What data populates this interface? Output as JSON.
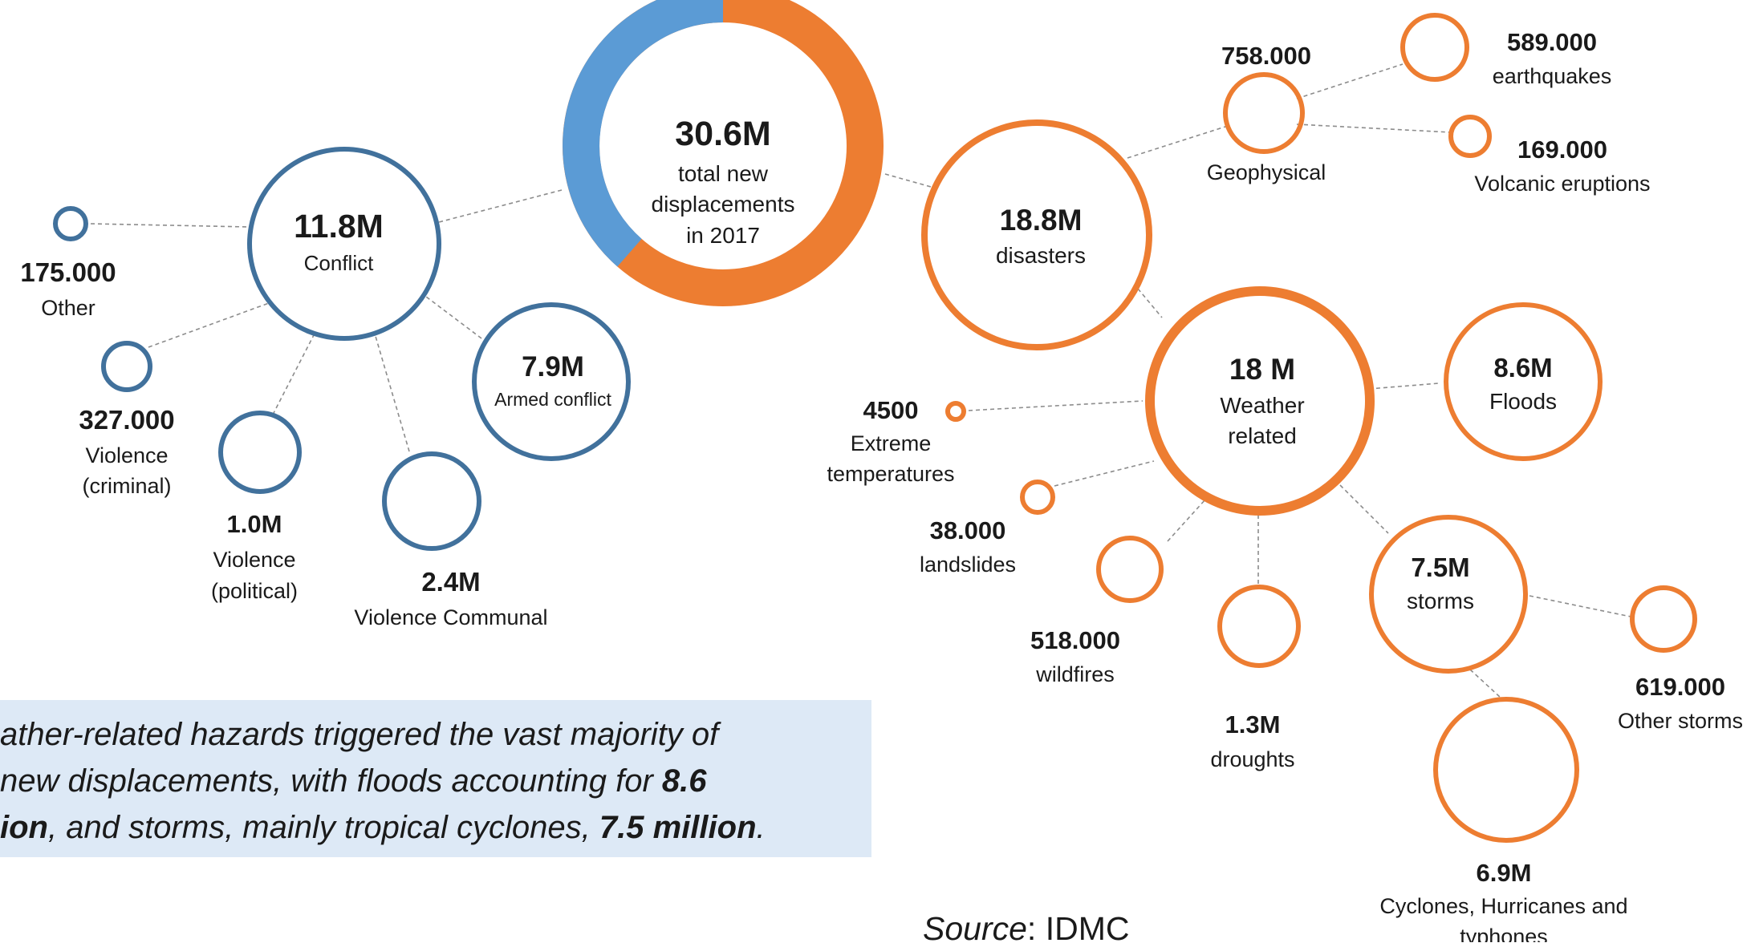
{
  "colors": {
    "conflict": "#41719c",
    "disaster": "#ed7d31",
    "donut_blue": "#5b9bd5",
    "callout_bg": "#dde9f6"
  },
  "total": {
    "value": "30.6M",
    "line1": "total new",
    "line2": "displacements",
    "line3": "in 2017"
  },
  "donut_shares": {
    "conflict": 11.8,
    "disasters": 18.8
  },
  "conflict": {
    "main": {
      "value": "11.8M",
      "label": "Conflict"
    },
    "other": {
      "value": "175.000",
      "label": "Other"
    },
    "criminal": {
      "value": "327.000",
      "label1": "Violence",
      "label2": "(criminal)"
    },
    "political": {
      "value": "1.0M",
      "label1": "Violence",
      "label2": "(political)"
    },
    "communal": {
      "value": "2.4M",
      "label": "Violence Communal"
    },
    "armed": {
      "value": "7.9M",
      "label": "Armed conflict"
    }
  },
  "disasters": {
    "main": {
      "value": "18.8M",
      "label": "disasters"
    },
    "geophysical": {
      "value": "758.000",
      "label": "Geophysical"
    },
    "earthquakes": {
      "value": "589.000",
      "label": "earthquakes"
    },
    "volcanic": {
      "value": "169.000",
      "label": "Volcanic eruptions"
    },
    "weather": {
      "value": "18 M",
      "label1": "Weather",
      "label2": "related"
    },
    "floods": {
      "value": "8.6M",
      "label": "Floods"
    },
    "extreme": {
      "value": "4500",
      "label1": "Extreme",
      "label2": "temperatures"
    },
    "landslides": {
      "value": "38.000",
      "label": "landslides"
    },
    "wildfires": {
      "value": "518.000",
      "label": "wildfires"
    },
    "droughts": {
      "value": "1.3M",
      "label": "droughts"
    },
    "storms": {
      "value": "7.5M",
      "label": "storms"
    },
    "other_storms": {
      "value": "619.000",
      "label": "Other storms"
    },
    "cyclones": {
      "value": "6.9M",
      "label1": "Cyclones, Hurricanes and",
      "label2": "typhones"
    }
  },
  "callout": {
    "line1": "ather-related hazards triggered the vast majority of",
    "line2_pre": "new displacements, with floods accounting for ",
    "line2_bold": "8.6",
    "line3_bold1": "ion",
    "line3_mid": ", and storms, mainly tropical cyclones, ",
    "line3_bold2": "7.5 million",
    "line3_end": "."
  },
  "source": {
    "label": "Source",
    "rest": ": IDMC"
  }
}
